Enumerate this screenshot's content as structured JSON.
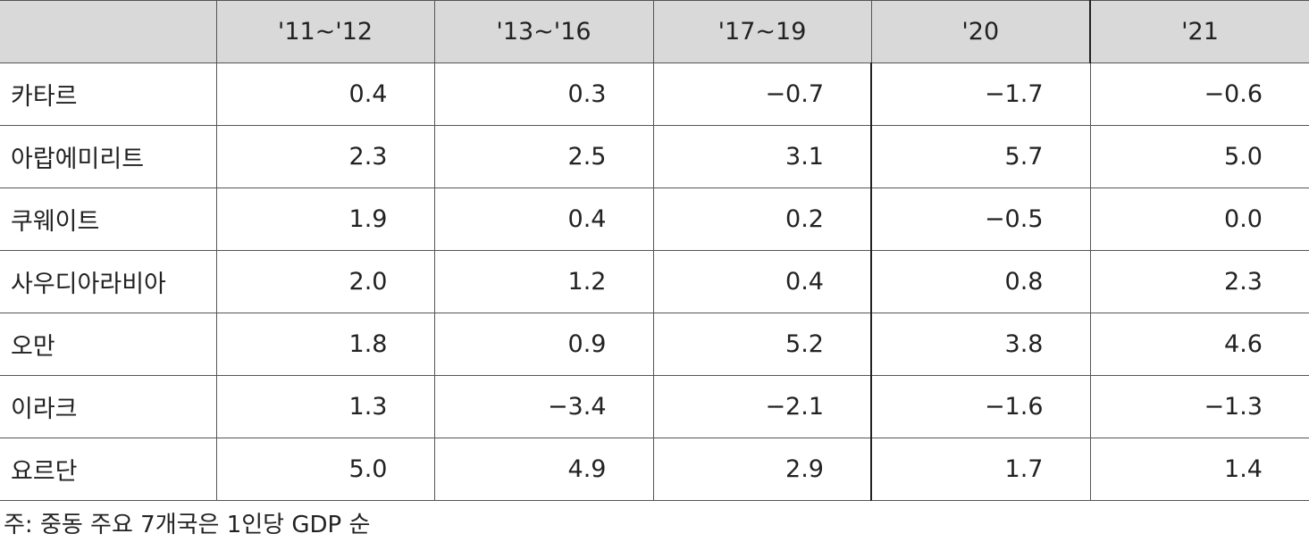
{
  "table": {
    "header": [
      "'11~'12",
      "'13~'16",
      "'17~19",
      "'20",
      "'21"
    ],
    "rows": [
      [
        "카타르",
        "0.4",
        "0.3",
        "−0.7",
        "−1.7",
        "−0.6"
      ],
      [
        "아랍에미리트",
        "2.3",
        "2.5",
        "3.1",
        "5.7",
        "5.0"
      ],
      [
        "쿠웨이트",
        "1.9",
        "0.4",
        "0.2",
        "−0.5",
        "0.0"
      ],
      [
        "사우디아라비아",
        "2.0",
        "1.2",
        "0.4",
        "0.8",
        "2.3"
      ],
      [
        "오만",
        "1.8",
        "0.9",
        "5.2",
        "3.8",
        "4.6"
      ],
      [
        "이라크",
        "1.3",
        "−3.4",
        "−2.1",
        "−1.6",
        "−1.3"
      ],
      [
        "요르단",
        "5.0",
        "4.9",
        "2.9",
        "1.7",
        "1.4"
      ]
    ]
  },
  "footnote": "주: 중동 주요 7개국은 1인당 GDP 순"
}
